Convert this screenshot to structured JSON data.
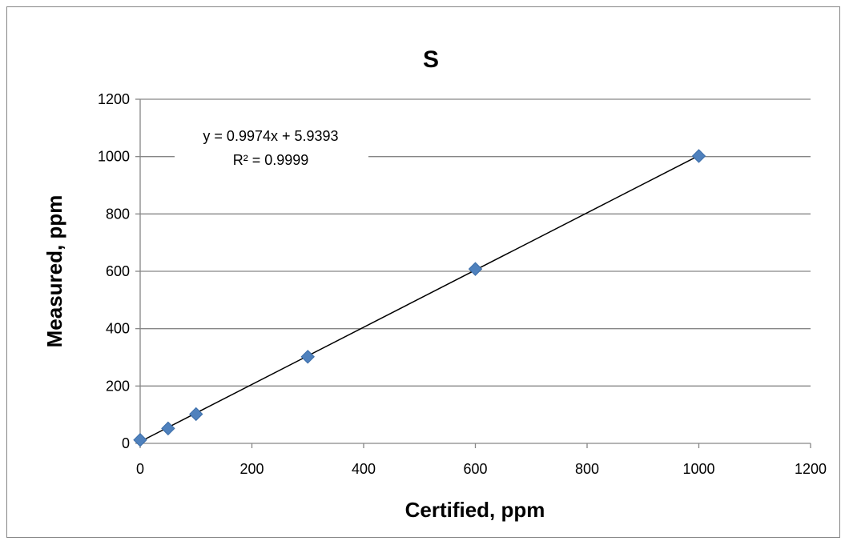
{
  "chart_data": {
    "type": "scatter",
    "title": "S",
    "xlabel": "Certified, ppm",
    "ylabel": "Measured, ppm",
    "xlim": [
      0,
      1200
    ],
    "ylim": [
      0,
      1200
    ],
    "x_ticks": [
      0,
      200,
      400,
      600,
      800,
      1000,
      1200
    ],
    "y_ticks": [
      0,
      200,
      400,
      600,
      800,
      1000,
      1200
    ],
    "grid": "horizontal",
    "marker": "diamond",
    "marker_color": "#4F81BD",
    "trendline_color": "#000000",
    "series": [
      {
        "x": [
          0,
          50,
          100,
          300,
          600,
          1000
        ],
        "y": [
          12,
          52,
          102,
          302,
          608,
          1002
        ]
      }
    ],
    "trendline": {
      "type": "linear",
      "slope": 0.9974,
      "intercept": 5.9393,
      "equation": "y = 0.9974x + 5.9393",
      "r_squared": "R² = 0.9999"
    }
  }
}
